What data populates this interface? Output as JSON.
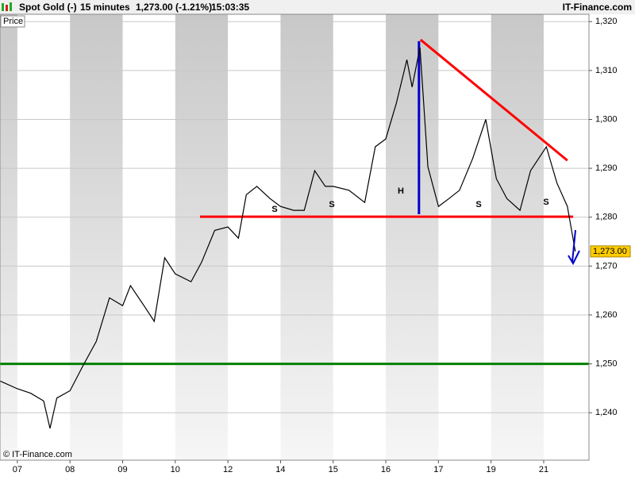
{
  "chart_data": {
    "type": "line",
    "header": {
      "symbol": "Spot Gold (-)",
      "interval": "15 minutes",
      "quote": "1,273.00 (-1.21%)",
      "time": "15:03:35",
      "brand": "IT-Finance.com"
    },
    "copyright": "© IT-Finance.com",
    "x": [
      -0.33,
      0,
      0.25,
      0.5,
      0.62,
      0.75,
      1.0,
      1.25,
      1.5,
      1.75,
      2.0,
      2.15,
      2.4,
      2.6,
      2.8,
      3.0,
      3.3,
      3.5,
      3.75,
      4.0,
      4.2,
      4.35,
      4.55,
      4.8,
      5.0,
      5.25,
      5.45,
      5.65,
      5.85,
      6.0,
      6.3,
      6.6,
      6.8,
      7.0,
      7.2,
      7.4,
      7.5,
      7.65,
      7.8,
      8.0,
      8.2,
      8.4,
      8.65,
      8.9,
      9.1,
      9.3,
      9.55,
      9.75,
      10.05,
      10.25,
      10.45,
      10.6
    ],
    "series": [
      {
        "name": "Price",
        "color": "#000000",
        "values": [
          1246.5,
          1244.9,
          1244,
          1242.4,
          1236.8,
          1243,
          1244.5,
          1249.7,
          1254.6,
          1263.5,
          1261.9,
          1266,
          1262,
          1258.7,
          1271.7,
          1268.4,
          1266.8,
          1270.8,
          1277.3,
          1278,
          1275.7,
          1284.6,
          1286.3,
          1283.8,
          1282.2,
          1281.4,
          1281.4,
          1289.5,
          1286.3,
          1286.3,
          1285.5,
          1283,
          1294.4,
          1296,
          1303.3,
          1312.2,
          1306.6,
          1314.7,
          1290.3,
          1282.2,
          1283.8,
          1285.5,
          1292,
          1300,
          1287.9,
          1283.8,
          1281.4,
          1289.5,
          1294.4,
          1287,
          1282.2,
          1273
        ],
        "last_value_label": "1,273.00"
      }
    ],
    "xlim": [
      -0.33,
      10.86
    ],
    "ylim": [
      1230.3,
      1321.5
    ],
    "xticks": [
      {
        "value": 0,
        "label": "07"
      },
      {
        "value": 1,
        "label": "08"
      },
      {
        "value": 2,
        "label": "09"
      },
      {
        "value": 3,
        "label": "10"
      },
      {
        "value": 4,
        "label": "12"
      },
      {
        "value": 5,
        "label": "14"
      },
      {
        "value": 6,
        "label": "15"
      },
      {
        "value": 7,
        "label": "16"
      },
      {
        "value": 8,
        "label": "17"
      },
      {
        "value": 9,
        "label": "19"
      },
      {
        "value": 10,
        "label": "21"
      }
    ],
    "yticks": [
      {
        "value": 1240,
        "label": "1,240"
      },
      {
        "value": 1250,
        "label": "1,250"
      },
      {
        "value": 1260,
        "label": "1,260"
      },
      {
        "value": 1270,
        "label": "1,270"
      },
      {
        "value": 1280,
        "label": "1,280"
      },
      {
        "value": 1290,
        "label": "1,290"
      },
      {
        "value": 1300,
        "label": "1,300"
      },
      {
        "value": 1310,
        "label": "1,310"
      },
      {
        "value": 1320,
        "label": "1,320"
      }
    ],
    "grid": true,
    "trend_lines": [
      {
        "color": "#ff0000",
        "x": [
          3.47,
          10.56
        ],
        "y": [
          1280.1,
          1280.1
        ]
      },
      {
        "color": "#ff0000",
        "x": [
          7.66,
          10.45
        ],
        "y": [
          1316.3,
          1291.6
        ]
      },
      {
        "color": "#008000",
        "x": [
          -0.33,
          10.86
        ],
        "y": [
          1250,
          1250
        ]
      },
      {
        "color": "#0000cc",
        "x": [
          7.63,
          7.63
        ],
        "y": [
          1280.6,
          1316
        ]
      }
    ],
    "annotations": [
      "H",
      "S",
      "S",
      "S",
      "S"
    ]
  }
}
